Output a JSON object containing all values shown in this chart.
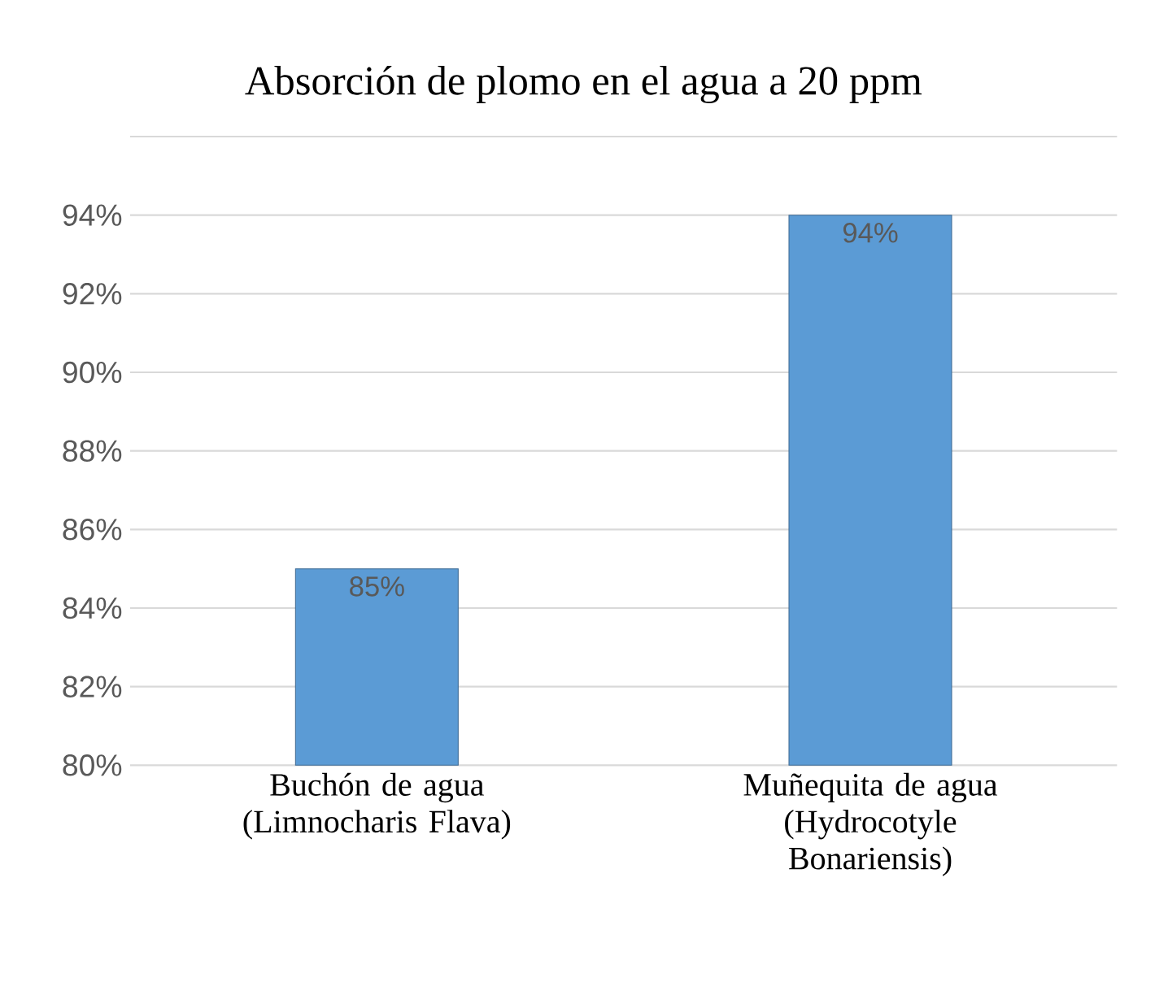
{
  "chart_data": {
    "type": "bar",
    "title": "Absorción de plomo en el agua a 20 ppm",
    "categories": [
      "Buchón de agua (Limnocharis Flava)",
      "Muñequita de agua (Hydrocotyle Bonariensis)"
    ],
    "values": [
      85,
      94
    ],
    "color": "#5b9bd5",
    "value_labels": [
      "85%",
      "94%"
    ],
    "ylim": [
      80,
      96
    ],
    "yticks": [
      {
        "value": 80,
        "label": "80%"
      },
      {
        "value": 82,
        "label": "82%"
      },
      {
        "value": 84,
        "label": "84%"
      },
      {
        "value": 86,
        "label": "86%"
      },
      {
        "value": 88,
        "label": "88%"
      },
      {
        "value": 90,
        "label": "90%"
      },
      {
        "value": 92,
        "label": "92%"
      },
      {
        "value": 94,
        "label": "94%"
      },
      {
        "value": 96,
        "label": null
      }
    ],
    "grid": "y"
  }
}
